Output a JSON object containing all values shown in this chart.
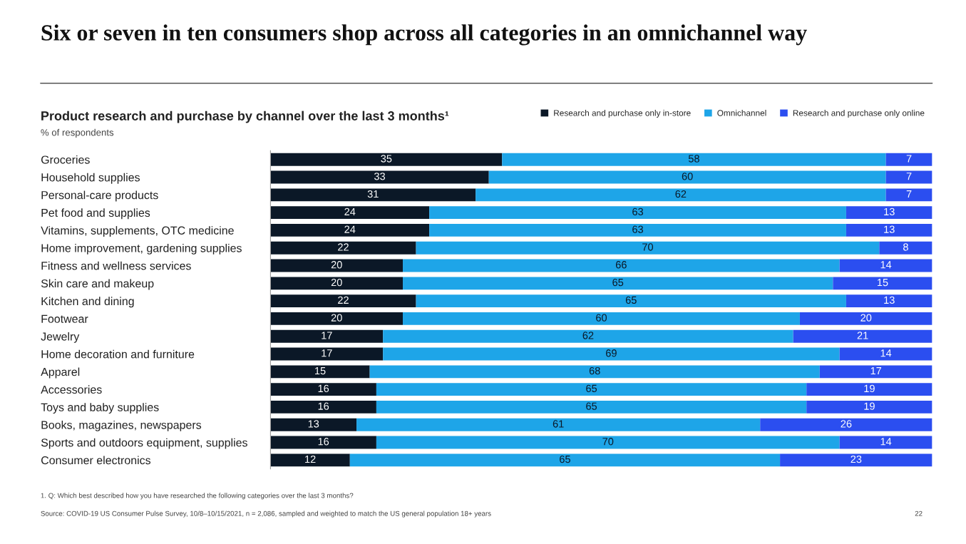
{
  "chart_data": {
    "type": "bar",
    "orientation": "horizontal",
    "stacked": true,
    "data_labels": true,
    "legend": "top right",
    "grid": false,
    "title": "Six or seven in ten consumers shop across all categories in an omnichannel way",
    "subtitle": "Product research and purchase by channel over the last 3 months¹",
    "annotations": [
      "% of respondents",
      "1. Q: Which best described how you have researched the following categories over the last 3 months?",
      "Source: COVID-19 US Consumer Pulse Survey, 10/8–10/15/2021, n = 2,086, sampled and weighted to match the US general population 18+ years",
      "22"
    ],
    "categories": [
      "Groceries",
      "Household supplies",
      "Personal-care products",
      "Pet food and supplies",
      "Vitamins, supplements, OTC medicine",
      "Home improvement, gardening supplies",
      "Fitness and wellness services",
      "Skin care and makeup",
      "Kitchen and dining",
      "Footwear",
      "Jewelry",
      "Home decoration and furniture",
      "Apparel",
      "Accessories",
      "Toys and baby supplies",
      "Books, magazines, newspapers",
      "Sports and outdoors equipment, supplies",
      "Consumer electronics"
    ],
    "series": [
      {
        "name": "Research and purchase only in-store",
        "color": "#0b1827",
        "values": [
          35,
          33,
          31,
          24,
          24,
          22,
          20,
          20,
          22,
          20,
          17,
          17,
          15,
          16,
          16,
          13,
          16,
          12
        ]
      },
      {
        "name": "Omnichannel",
        "color": "#1ea5e8",
        "values": [
          58,
          60,
          62,
          63,
          63,
          70,
          66,
          65,
          65,
          60,
          62,
          69,
          68,
          65,
          65,
          61,
          70,
          65
        ]
      },
      {
        "name": "Research and purchase only online",
        "color": "#2b4ef0",
        "values": [
          7,
          7,
          7,
          13,
          13,
          8,
          14,
          15,
          13,
          20,
          21,
          14,
          17,
          19,
          19,
          26,
          14,
          23
        ]
      }
    ]
  }
}
